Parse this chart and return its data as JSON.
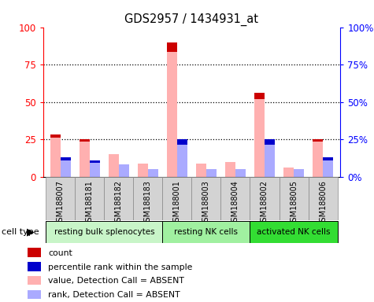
{
  "title": "GDS2957 / 1434931_at",
  "samples": [
    "GSM188007",
    "GSM188181",
    "GSM188182",
    "GSM188183",
    "GSM188001",
    "GSM188003",
    "GSM188004",
    "GSM188002",
    "GSM188005",
    "GSM188006"
  ],
  "groups": [
    {
      "name": "resting bulk splenocytes",
      "start": 0,
      "end": 3,
      "color": "#c8f5c8"
    },
    {
      "name": "resting NK cells",
      "start": 4,
      "end": 6,
      "color": "#a0f0a0"
    },
    {
      "name": "activated NK cells",
      "start": 7,
      "end": 9,
      "color": "#33dd33"
    }
  ],
  "value_absent": [
    28,
    25,
    15,
    9,
    90,
    9,
    10,
    56,
    6,
    25
  ],
  "rank_absent": [
    13,
    11,
    8,
    5,
    25,
    5,
    5,
    25,
    5,
    13
  ],
  "count_flags": [
    1,
    1,
    0,
    0,
    1,
    0,
    0,
    1,
    0,
    1
  ],
  "percentile_flags": [
    1,
    1,
    0,
    0,
    1,
    0,
    0,
    1,
    0,
    1
  ],
  "yticks": [
    0,
    25,
    50,
    75,
    100
  ],
  "bar_width": 0.35,
  "value_color": "#ffb0b0",
  "rank_color": "#aaaaff",
  "count_color": "#cc0000",
  "percentile_color": "#0000cc",
  "ticklabel_bg": "#d3d3d3",
  "ticklabel_border": "#888888",
  "legend_items": [
    {
      "color": "#cc0000",
      "label": "count"
    },
    {
      "color": "#0000cc",
      "label": "percentile rank within the sample"
    },
    {
      "color": "#ffb0b0",
      "label": "value, Detection Call = ABSENT"
    },
    {
      "color": "#aaaaff",
      "label": "rank, Detection Call = ABSENT"
    }
  ],
  "cell_type_label": "cell type",
  "cell_type_arrow": "▶"
}
